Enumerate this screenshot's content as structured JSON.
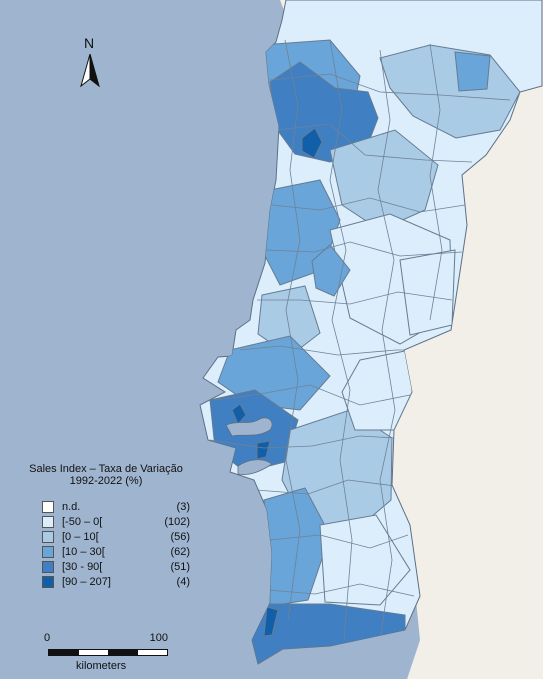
{
  "map": {
    "colors": {
      "sea": "#9fb5cf",
      "land": "#f2efe8",
      "boundary": "#7c8da0",
      "classes": [
        "#ffffff",
        "#dceefb",
        "#a9cbe6",
        "#69a5d8",
        "#3f7fc2",
        "#105fa8"
      ]
    },
    "north_label": "N",
    "legend": {
      "title_line_1": "Sales Index – Taxa de Variação",
      "title_line_2": "1992-2022 (%)",
      "items": [
        {
          "range": "n.d.",
          "count": "(3)"
        },
        {
          "range": "[-50 – 0[",
          "count": "(102)"
        },
        {
          "range": "[0 – 10[",
          "count": "(56)"
        },
        {
          "range": "[10 – 30[",
          "count": "(62)"
        },
        {
          "range": "[30 - 90[",
          "count": "(51)"
        },
        {
          "range": "[90 – 207]",
          "count": "(4)"
        }
      ]
    },
    "scale": {
      "start": "0",
      "end": "100",
      "unit": "kilometers"
    }
  }
}
